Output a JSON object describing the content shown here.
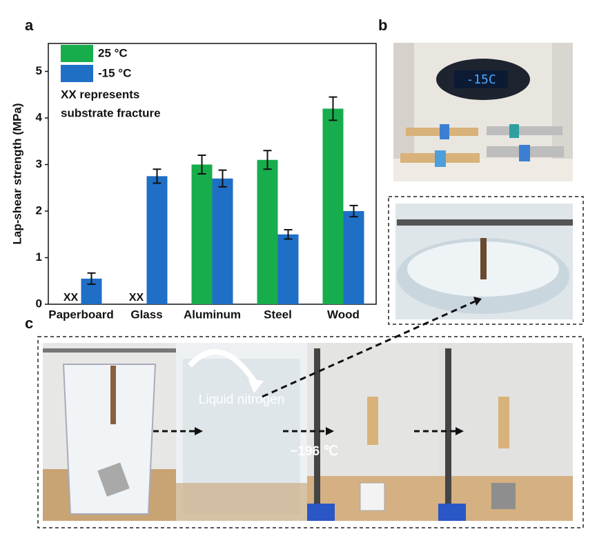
{
  "chart_data": {
    "type": "bar",
    "panel_labels": [
      "a",
      "b",
      "c"
    ],
    "y_label": "Lap-shear strength (MPa)",
    "categories": [
      "Paperboard",
      "Glass",
      "Aluminum",
      "Steel",
      "Wood"
    ],
    "series": [
      {
        "name": "25 °C",
        "color": "#18ad4c",
        "values": [
          null,
          null,
          3.0,
          3.1,
          4.2
        ],
        "errors": [
          null,
          null,
          0.2,
          0.2,
          0.25
        ],
        "value_labels": [
          "XX",
          "XX",
          null,
          null,
          null
        ]
      },
      {
        "name": "-15 °C",
        "color": "#1f6fc6",
        "values": [
          0.55,
          2.75,
          2.7,
          1.5,
          2.0
        ],
        "errors": [
          0.12,
          0.15,
          0.18,
          0.1,
          0.12
        ]
      }
    ],
    "annotations": [
      "XX represents",
      "substrate fracture"
    ],
    "photo_texts": [
      "-15C",
      "Liquid nitrogen",
      "−196 ℃"
    ],
    "ylim": [
      0,
      5.6
    ],
    "yticks": [
      0,
      1,
      2,
      3,
      4,
      5
    ],
    "legend": "upper left"
  }
}
